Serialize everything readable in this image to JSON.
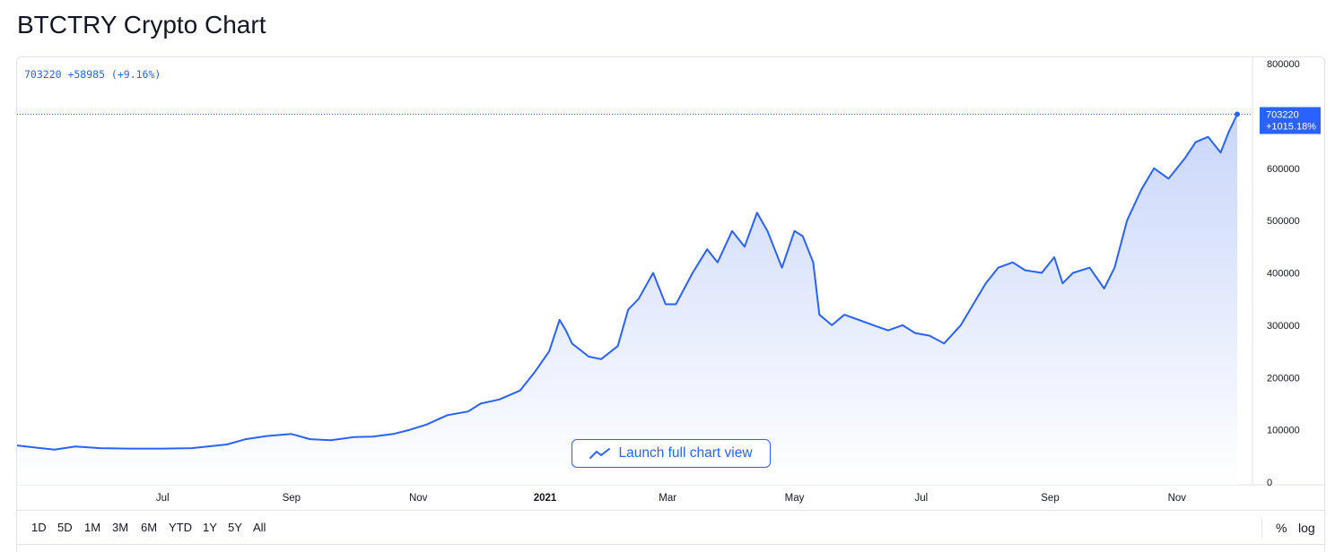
{
  "page": {
    "title": "BTCTRY Crypto Chart"
  },
  "legend": {
    "text": "703220 +58985 (+9.16%)"
  },
  "price_label": {
    "price": "703220",
    "change": "+1015.18%"
  },
  "launch_button": {
    "label": "Launch full chart view"
  },
  "range_buttons": [
    "1D",
    "5D",
    "1M",
    "3M",
    "6M",
    "YTD",
    "1Y",
    "5Y",
    "All"
  ],
  "scale_toggles": {
    "percent": "%",
    "log": "log"
  },
  "colors": {
    "line": "#2962ff",
    "fill_top": "#c9d6fa",
    "fill_bottom": "#ffffff",
    "text": "#131722",
    "axis_text": "#131722",
    "border": "#e0e3eb"
  },
  "chart_data": {
    "type": "area",
    "title": "",
    "ylim": [
      0,
      800000
    ],
    "grid": false,
    "y_ticks": [
      800000,
      600000,
      500000,
      400000,
      300000,
      200000,
      100000,
      0
    ],
    "y_tick_labels": [
      "800000",
      "600000",
      "500000",
      "400000",
      "300000",
      "200000",
      "100000",
      "0"
    ],
    "x_ticks": [
      {
        "date": "2020-07-01",
        "label": "Jul",
        "bold": false
      },
      {
        "date": "2020-09-01",
        "label": "Sep",
        "bold": false
      },
      {
        "date": "2020-11-01",
        "label": "Nov",
        "bold": false
      },
      {
        "date": "2021-01-01",
        "label": "2021",
        "bold": true
      },
      {
        "date": "2021-03-01",
        "label": "Mar",
        "bold": false
      },
      {
        "date": "2021-05-01",
        "label": "May",
        "bold": false
      },
      {
        "date": "2021-07-01",
        "label": "Jul",
        "bold": false
      },
      {
        "date": "2021-09-01",
        "label": "Sep",
        "bold": false
      },
      {
        "date": "2021-11-01",
        "label": "Nov",
        "bold": false
      }
    ],
    "series": [
      {
        "x": [
          "2020-04-22",
          "2020-05-01",
          "2020-05-10",
          "2020-05-20",
          "2020-06-01",
          "2020-06-15",
          "2020-07-01",
          "2020-07-15",
          "2020-08-01",
          "2020-08-10",
          "2020-08-20",
          "2020-09-01",
          "2020-09-10",
          "2020-09-20",
          "2020-10-01",
          "2020-10-10",
          "2020-10-20",
          "2020-10-28",
          "2020-11-05",
          "2020-11-15",
          "2020-11-25",
          "2020-12-01",
          "2020-12-10",
          "2020-12-20",
          "2020-12-27",
          "2021-01-03",
          "2021-01-08",
          "2021-01-11",
          "2021-01-14",
          "2021-01-22",
          "2021-01-28",
          "2021-02-05",
          "2021-02-10",
          "2021-02-15",
          "2021-02-22",
          "2021-02-28",
          "2021-03-05",
          "2021-03-13",
          "2021-03-20",
          "2021-03-25",
          "2021-04-01",
          "2021-04-07",
          "2021-04-13",
          "2021-04-18",
          "2021-04-25",
          "2021-05-01",
          "2021-05-05",
          "2021-05-10",
          "2021-05-13",
          "2021-05-19",
          "2021-05-25",
          "2021-06-01",
          "2021-06-08",
          "2021-06-15",
          "2021-06-22",
          "2021-06-28",
          "2021-07-05",
          "2021-07-12",
          "2021-07-20",
          "2021-07-26",
          "2021-08-01",
          "2021-08-07",
          "2021-08-14",
          "2021-08-20",
          "2021-08-28",
          "2021-09-03",
          "2021-09-07",
          "2021-09-12",
          "2021-09-20",
          "2021-09-27",
          "2021-10-02",
          "2021-10-08",
          "2021-10-15",
          "2021-10-21",
          "2021-10-28",
          "2021-11-05",
          "2021-11-10",
          "2021-11-16",
          "2021-11-22",
          "2021-11-26",
          "2021-11-30"
        ],
        "values": [
          70000,
          66000,
          62000,
          68000,
          65000,
          64000,
          64000,
          65000,
          72000,
          82000,
          88000,
          92000,
          82000,
          80000,
          86000,
          87000,
          92000,
          100000,
          110000,
          128000,
          135000,
          150000,
          158000,
          175000,
          210000,
          250000,
          310000,
          290000,
          265000,
          240000,
          235000,
          260000,
          330000,
          350000,
          400000,
          340000,
          340000,
          400000,
          445000,
          420000,
          480000,
          450000,
          515000,
          480000,
          410000,
          480000,
          470000,
          420000,
          320000,
          300000,
          320000,
          310000,
          300000,
          290000,
          300000,
          285000,
          280000,
          265000,
          300000,
          340000,
          380000,
          410000,
          420000,
          405000,
          400000,
          430000,
          380000,
          400000,
          410000,
          370000,
          410000,
          500000,
          560000,
          600000,
          580000,
          620000,
          650000,
          660000,
          630000,
          670000,
          703220
        ]
      }
    ]
  }
}
